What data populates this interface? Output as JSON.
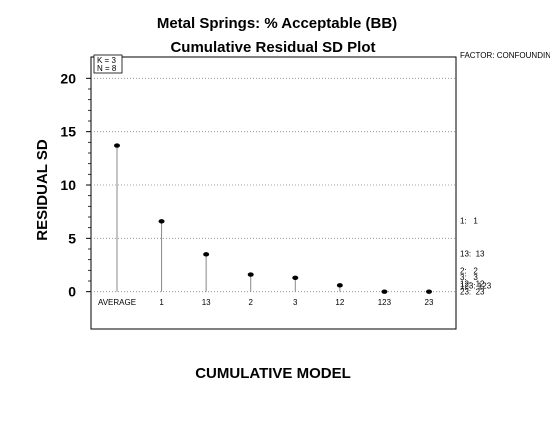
{
  "chart_data": {
    "type": "scatter",
    "title": "Metal Springs: % Acceptable (BB)",
    "subtitle": "Cumulative Residual SD Plot",
    "xlabel": "CUMULATIVE MODEL",
    "ylabel": "RESIDUAL SD",
    "ylim": [
      -3.5,
      22
    ],
    "yticks": [
      "0",
      "5",
      "10",
      "15",
      "20"
    ],
    "grid": "horizontal dotted",
    "categories": [
      "AVERAGE",
      "1",
      "13",
      "2",
      "3",
      "12",
      "123",
      "23"
    ],
    "values": [
      13.7,
      6.6,
      3.5,
      1.6,
      1.3,
      0.6,
      0.0,
      0.0
    ],
    "info_box": {
      "k": "K = 3",
      "n": "N = 8"
    },
    "factor_label": "FACTOR: CONFOUNDING",
    "confounding": [
      {
        "text": "1:   1",
        "level": 6.6
      },
      {
        "text": "13:  13",
        "level": 3.5
      },
      {
        "text": "2:   2",
        "level": 1.6
      },
      {
        "text": "3:   3",
        "level": 1.3
      },
      {
        "text": "12:  12",
        "level": 0.6
      },
      {
        "text": "123: 123",
        "level": 0.0
      },
      {
        "text": "23:  23",
        "level": 0.0
      }
    ]
  }
}
